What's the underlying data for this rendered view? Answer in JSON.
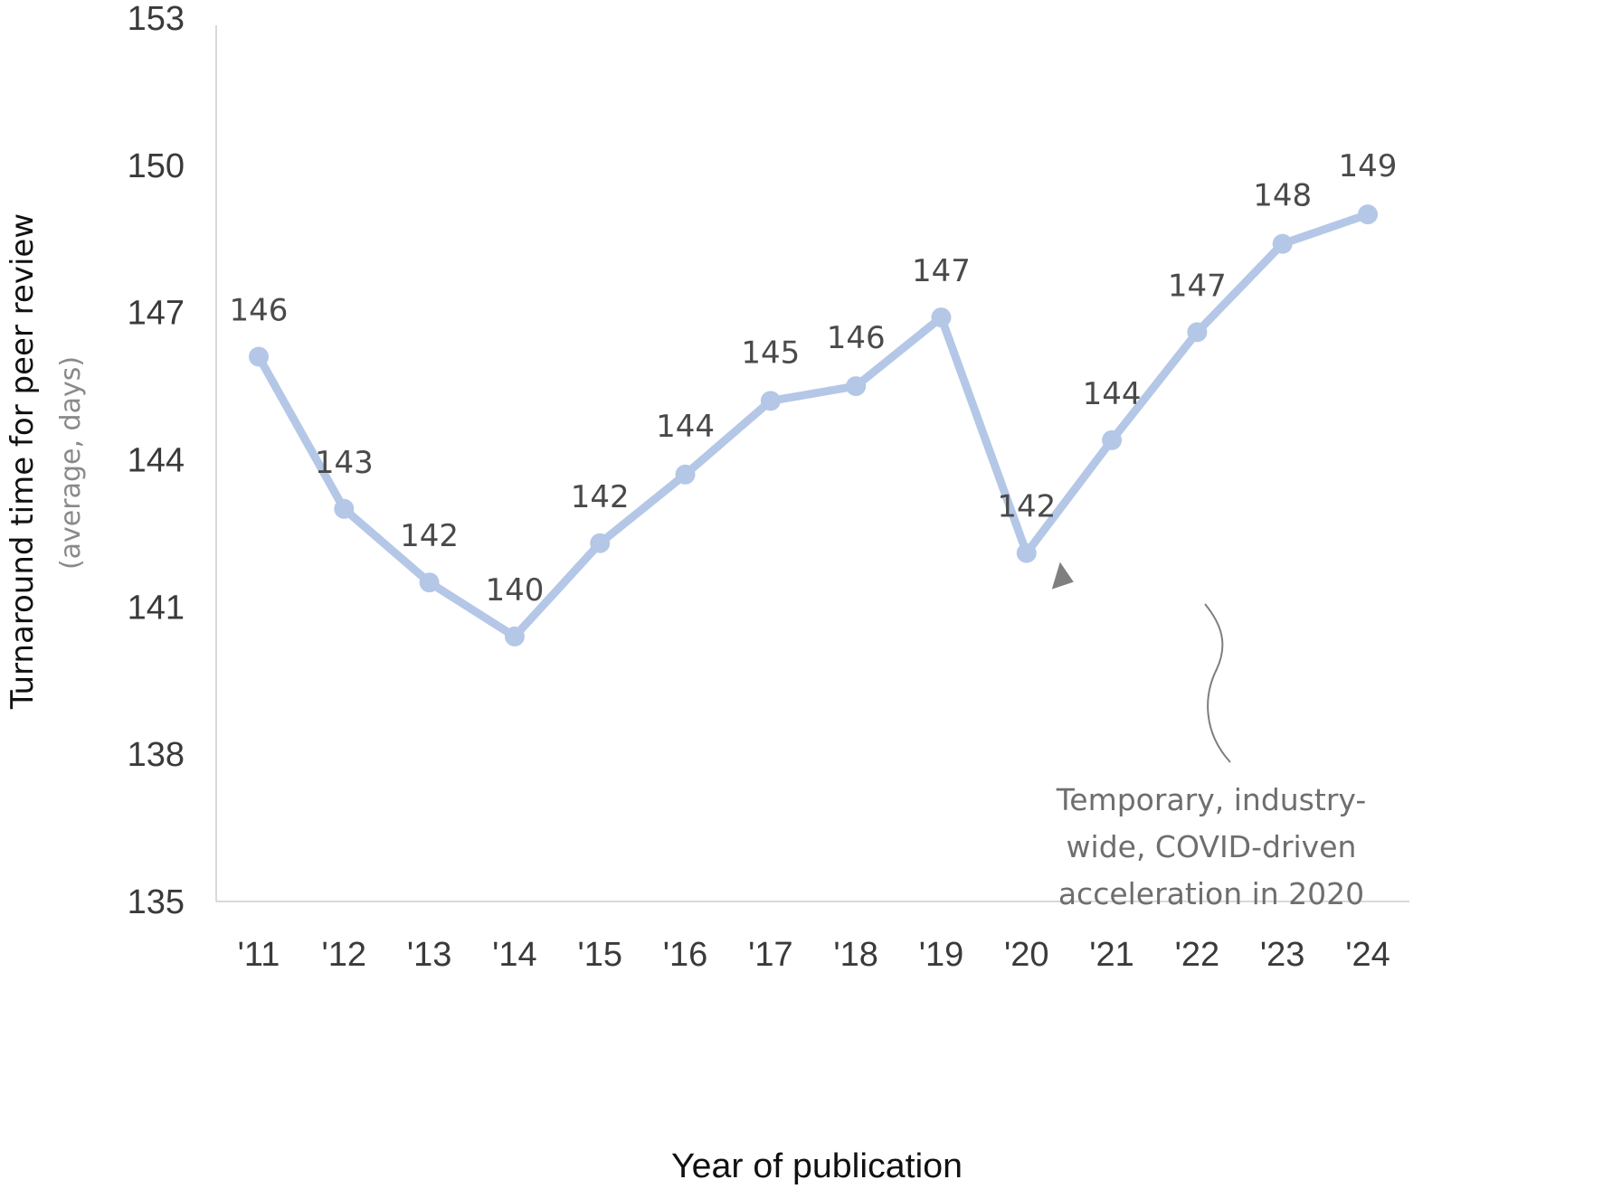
{
  "chart_data": {
    "type": "line",
    "title": "",
    "xlabel": "Year of publication",
    "ylabel": "Turnaround time for peer review",
    "ylabel_sub": "(average, days)",
    "ylim": [
      135,
      153
    ],
    "yticks": [
      135,
      138,
      141,
      144,
      147,
      150,
      153
    ],
    "ytick_labels": [
      "135",
      "138",
      "141",
      "144",
      "147",
      "150",
      "153"
    ],
    "categories": [
      "'11",
      "'12",
      "'13",
      "'14",
      "'15",
      "'16",
      "'17",
      "'18",
      "'19",
      "'20",
      "'21",
      "'22",
      "'23",
      "'24"
    ],
    "grid": false,
    "legend": "none",
    "series": [
      {
        "name": "Turnaround time",
        "color": "#b4c7e7",
        "values": [
          146.1,
          143.0,
          141.5,
          140.4,
          142.3,
          143.7,
          145.2,
          145.5,
          146.9,
          142.1,
          144.4,
          146.6,
          148.4,
          149.0
        ],
        "labels": [
          "146",
          "143",
          "142",
          "140",
          "142",
          "144",
          "145",
          "146",
          "147",
          "142",
          "144",
          "147",
          "148",
          "149"
        ]
      }
    ],
    "annotations": [
      {
        "target_category": "'20",
        "lines": [
          "Temporary, industry-",
          "wide, COVID-driven",
          "acceleration in 2020"
        ]
      }
    ]
  },
  "colors": {
    "line": "#b4c7e7",
    "axis": "#d9d9d9",
    "arrow": "#7f7f7f"
  }
}
